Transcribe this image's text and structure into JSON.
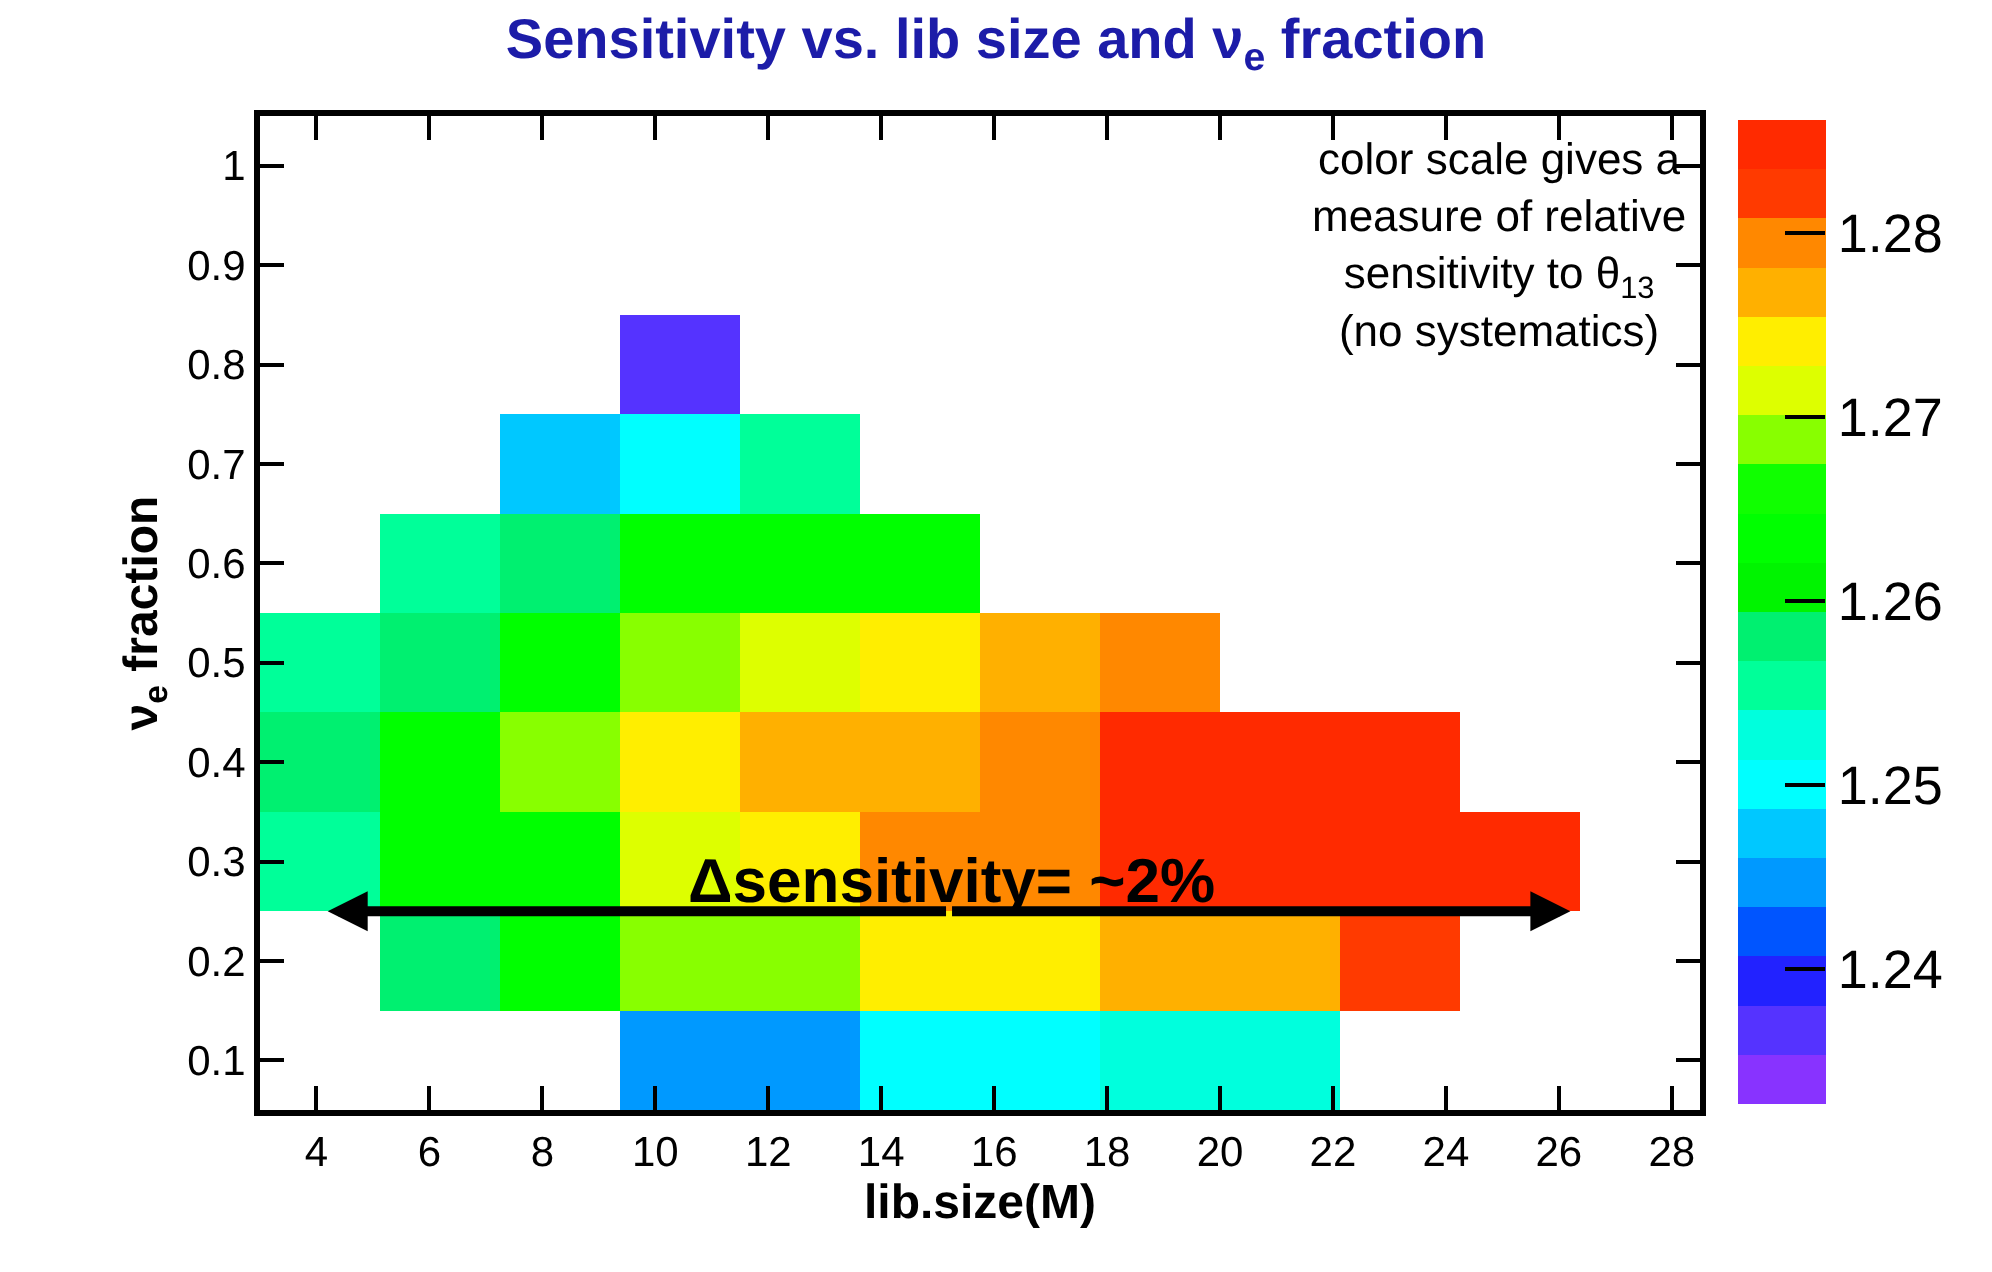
{
  "chart_data": {
    "type": "heatmap",
    "title": "Sensitivity vs. lib size and ν$_{e}$ fraction",
    "xlabel": "lib.size(M)",
    "ylabel": "ν$_{e}$ fraction",
    "x": [
      4.0625,
      6.1875,
      8.3125,
      10.4375,
      12.5625,
      14.6875,
      16.8125,
      18.9375,
      21.0625,
      23.1875,
      25.3125,
      27.4375
    ],
    "y_categories": [
      "1",
      "0.9",
      "0.8",
      "0.7",
      "0.6",
      "0.5",
      "0.4",
      "0.3",
      "0.2",
      "0.1"
    ],
    "cells": [
      [
        null,
        null,
        null,
        null,
        null,
        null,
        null,
        null,
        null,
        null,
        null,
        null
      ],
      [
        null,
        null,
        null,
        null,
        null,
        null,
        null,
        null,
        null,
        null,
        null,
        null
      ],
      [
        null,
        null,
        null,
        1.2366,
        null,
        null,
        null,
        null,
        null,
        null,
        null,
        null
      ],
      [
        null,
        null,
        1.2472,
        1.2499,
        1.2553,
        null,
        null,
        null,
        null,
        null,
        null,
        null
      ],
      [
        null,
        1.2553,
        1.258,
        1.2633,
        1.2633,
        1.2633,
        null,
        null,
        null,
        null,
        null,
        null
      ],
      [
        1.2553,
        1.258,
        1.2633,
        1.2687,
        1.2713,
        1.274,
        1.2767,
        1.2793,
        null,
        null,
        null,
        null
      ],
      [
        1.258,
        1.2633,
        1.2687,
        1.274,
        1.2767,
        1.2767,
        1.2793,
        1.2847,
        1.2847,
        1.2847,
        null,
        null
      ],
      [
        1.2553,
        1.2633,
        1.2633,
        1.2713,
        1.274,
        1.2793,
        1.2793,
        1.2847,
        1.2847,
        1.2847,
        1.2847,
        null
      ],
      [
        null,
        1.258,
        1.2633,
        1.2687,
        1.2687,
        1.274,
        1.274,
        1.2767,
        1.2767,
        1.282,
        null,
        null
      ],
      [
        null,
        null,
        null,
        1.2446,
        1.2446,
        1.2499,
        1.2499,
        1.2526,
        1.2526,
        null,
        null,
        null
      ]
    ],
    "xlim": [
      3,
      28.5
    ],
    "xticks": [
      4,
      6,
      8,
      10,
      12,
      14,
      16,
      18,
      20,
      22,
      24,
      26,
      28
    ],
    "clim": [
      1.2326,
      1.2861
    ],
    "cticks": [
      1.24,
      1.25,
      1.26,
      1.27,
      1.28
    ],
    "annotations": [
      "color scale gives a\nmeasure of relative\nsensitivity to θ$_{13}$\n(no systematics)",
      "Δsensitivity= ~2%"
    ]
  }
}
